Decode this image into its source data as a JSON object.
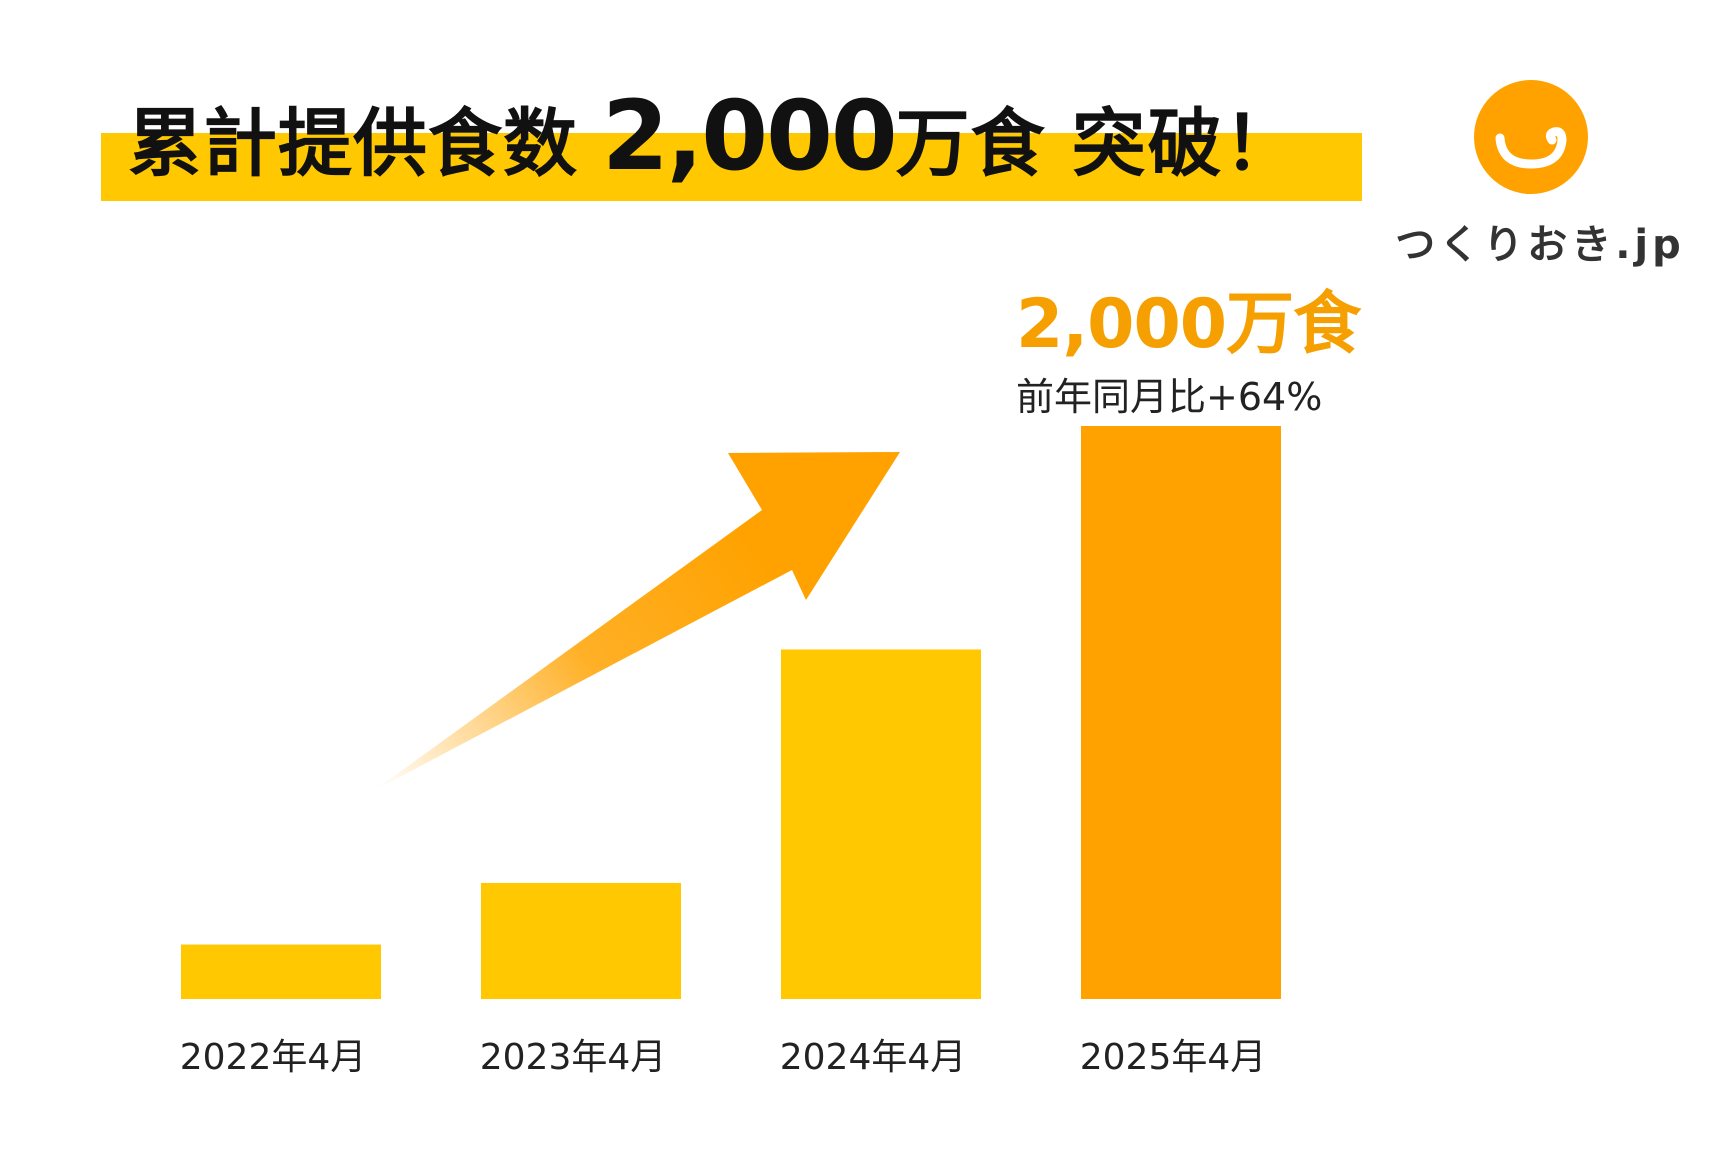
{
  "title": {
    "prefix": "累計提供食数",
    "number": "2,000",
    "unit": "万食",
    "suffix": "突破！"
  },
  "logo": {
    "icon": "smile-icon",
    "text": "つくりおき.jp"
  },
  "callout": {
    "value": "2,000万食",
    "note": "前年同月比+64%"
  },
  "colors": {
    "band": "#ffc800",
    "bar": "#ffc800",
    "bar_highlight": "#ffa200",
    "arrow": "#ffa200",
    "logo": "#ffa200"
  },
  "chart_data": {
    "type": "bar",
    "categories": [
      "2022年4月",
      "2023年4月",
      "2024年4月",
      "2025年4月"
    ],
    "values": [
      190,
      405,
      1220,
      2000
    ],
    "ylim": [
      0,
      2000
    ],
    "grid": false,
    "legend": "none"
  }
}
